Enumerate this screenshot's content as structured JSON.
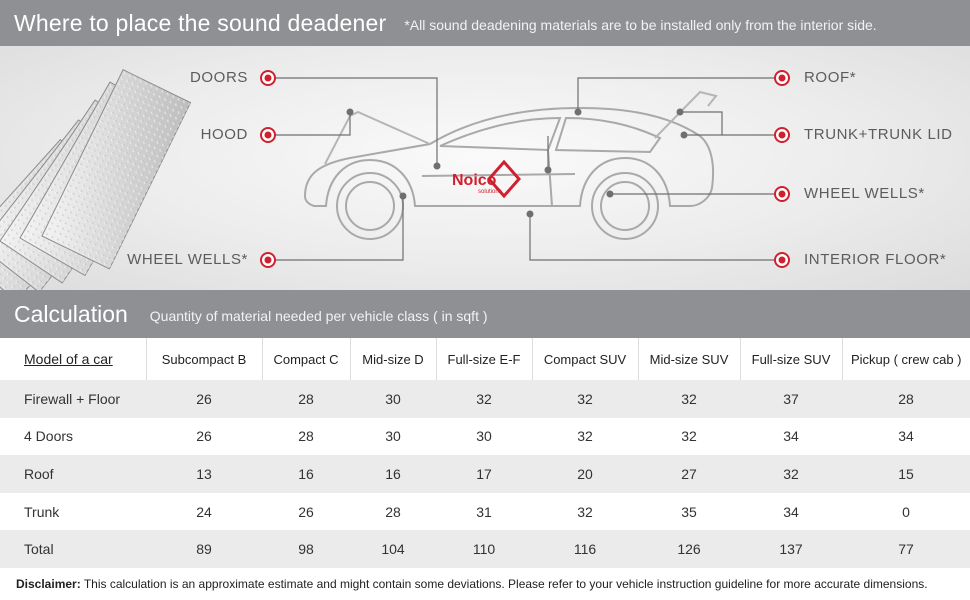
{
  "header": {
    "title": "Where to place the sound deadener",
    "note": "*All sound deadening materials are to be installed only from the interior side."
  },
  "diagram": {
    "labels": {
      "doors": "DOORS",
      "hood": "HOOD",
      "wheel_wells_left": "WHEEL WELLS*",
      "roof": "ROOF*",
      "trunk": "TRUNK+TRUNK LID",
      "wheel_wells_right": "WHEEL WELLS*",
      "interior_floor": "INTERIOR FLOOR*"
    },
    "logo_text": "Noico",
    "logo_subtext": "solutions",
    "accent_color": "#d0202f"
  },
  "calculation": {
    "title": "Calculation",
    "subtitle": "Quantity of material needed per vehicle class ( in sqft )",
    "columns": [
      "Model of a car",
      "Subcompact B",
      "Compact C",
      "Mid-size D",
      "Full-size E-F",
      "Compact SUV",
      "Mid-size SUV",
      "Full-size SUV",
      "Pickup ( crew cab )"
    ],
    "rows": [
      {
        "label": "Firewall + Floor",
        "values": [
          "26",
          "28",
          "30",
          "32",
          "32",
          "32",
          "37",
          "28"
        ]
      },
      {
        "label": "4 Doors",
        "values": [
          "26",
          "28",
          "30",
          "30",
          "32",
          "32",
          "34",
          "34"
        ]
      },
      {
        "label": "Roof",
        "values": [
          "13",
          "16",
          "16",
          "17",
          "20",
          "27",
          "32",
          "15"
        ]
      },
      {
        "label": "Trunk",
        "values": [
          "24",
          "26",
          "28",
          "31",
          "32",
          "35",
          "34",
          "0"
        ]
      },
      {
        "label": "Total",
        "values": [
          "89",
          "98",
          "104",
          "110",
          "116",
          "126",
          "137",
          "77"
        ]
      }
    ]
  },
  "disclaimer": {
    "label": "Disclaimer:",
    "text": " This calculation is an approximate estimate and might contain some deviations. Please refer to your vehicle instruction guideline for more accurate dimensions."
  }
}
